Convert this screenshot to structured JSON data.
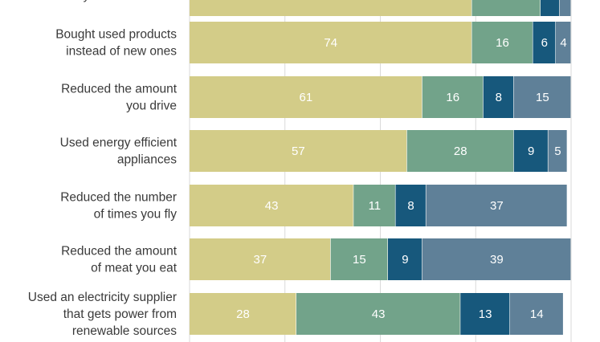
{
  "chart_data": {
    "type": "bar",
    "orientation": "horizontal",
    "stacked": true,
    "categories": [
      [
        "they are not needed"
      ],
      [
        "Bought used products",
        "instead of new ones"
      ],
      [
        "Reduced the amount",
        "you drive"
      ],
      [
        "Used energy efficient",
        "appliances"
      ],
      [
        "Reduced the number",
        "of times you fly"
      ],
      [
        "Reduced the amount",
        "of meat you eat"
      ],
      [
        "Used an electricity supplier",
        "that gets power from",
        "renewable sources"
      ]
    ],
    "series": [
      {
        "values": [
          74,
          74,
          61,
          57,
          43,
          37,
          28
        ],
        "color": "#d3cc88"
      },
      {
        "values": [
          18,
          16,
          16,
          28,
          11,
          15,
          43
        ],
        "color": "#72a38a"
      },
      {
        "values": [
          5,
          6,
          8,
          9,
          8,
          9,
          13
        ],
        "color": "#17587c"
      },
      {
        "values": [
          3,
          4,
          15,
          5,
          37,
          39,
          14
        ],
        "color": "#5f8098"
      }
    ],
    "xlim": [
      0,
      100
    ],
    "grid": true,
    "legend": "none"
  }
}
